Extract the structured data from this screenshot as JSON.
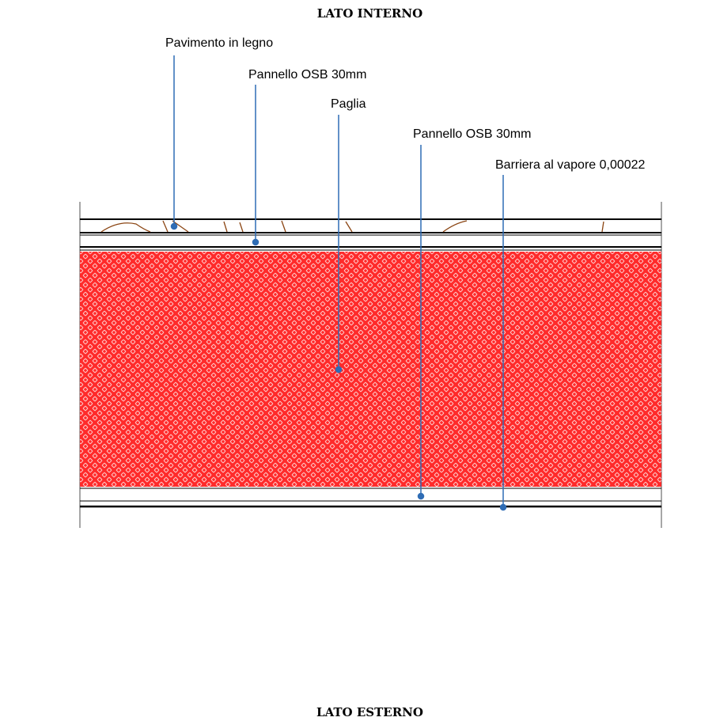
{
  "diagram": {
    "top_label": "LATO INTERNO",
    "bottom_label": "LATO ESTERNO",
    "callouts": [
      {
        "id": "pavimento",
        "label": "Pavimento in legno"
      },
      {
        "id": "osb-top",
        "label": "Pannello OSB 30mm"
      },
      {
        "id": "paglia",
        "label": "Paglia"
      },
      {
        "id": "osb-bottom",
        "label": "Pannello OSB 30mm"
      },
      {
        "id": "barriera",
        "label": "Barriera al vapore 0,00022"
      }
    ],
    "colors": {
      "straw_fill": "#ff2a2a",
      "straw_hatch": "#ffc8c8",
      "wood_grain": "#8b4513",
      "leader_line": "#2f6db5",
      "layer_line": "#000000"
    },
    "icons": {
      "straw_pattern": "herringbone-hatch",
      "wood_pattern": "wood-grain"
    }
  }
}
